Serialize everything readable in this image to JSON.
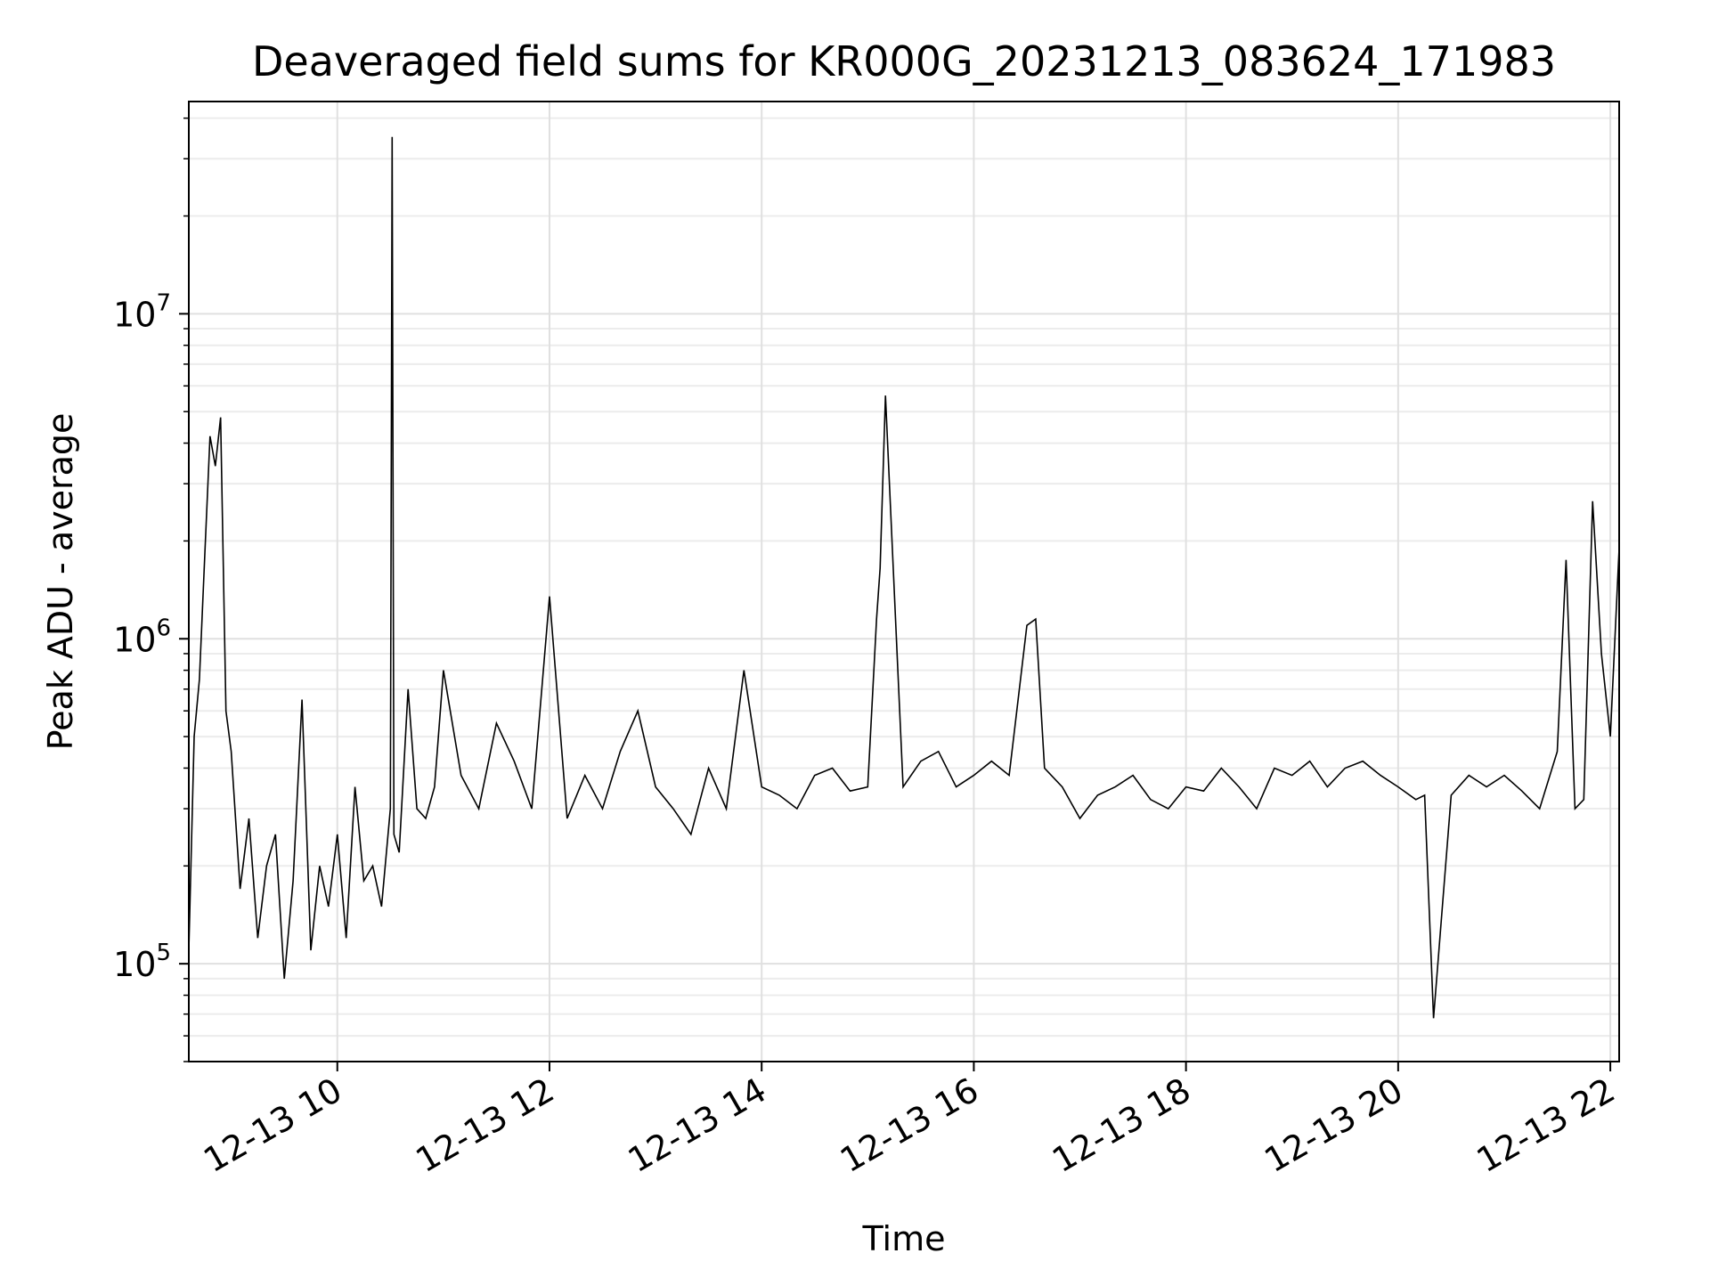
{
  "chart_data": {
    "type": "line",
    "title": "Deaveraged field sums for KR000G_20231213_083624_171983",
    "xlabel": "Time",
    "ylabel": "Peak ADU - average",
    "y_scale": "log",
    "grid": "major and minor",
    "x_range": [
      "2023-12-13 08:36",
      "2023-12-13 22:05"
    ],
    "ylim": [
      50000,
      45000000
    ],
    "x_ticks": [
      {
        "t": "2023-12-13 10:00",
        "label": "12-13 10"
      },
      {
        "t": "2023-12-13 12:00",
        "label": "12-13 12"
      },
      {
        "t": "2023-12-13 14:00",
        "label": "12-13 14"
      },
      {
        "t": "2023-12-13 16:00",
        "label": "12-13 16"
      },
      {
        "t": "2023-12-13 18:00",
        "label": "12-13 18"
      },
      {
        "t": "2023-12-13 20:00",
        "label": "12-13 20"
      },
      {
        "t": "2023-12-13 22:00",
        "label": "12-13 22"
      }
    ],
    "y_ticks": [
      {
        "value": 100000,
        "base": "10",
        "exp": "5"
      },
      {
        "value": 1000000,
        "base": "10",
        "exp": "6"
      },
      {
        "value": 10000000,
        "base": "10",
        "exp": "7"
      }
    ],
    "series": [
      {
        "color": "#000000",
        "x": [
          "2023-12-13 08:36",
          "2023-12-13 08:39",
          "2023-12-13 08:42",
          "2023-12-13 08:45",
          "2023-12-13 08:48",
          "2023-12-13 08:51",
          "2023-12-13 08:54",
          "2023-12-13 08:57",
          "2023-12-13 09:00",
          "2023-12-13 09:05",
          "2023-12-13 09:10",
          "2023-12-13 09:15",
          "2023-12-13 09:20",
          "2023-12-13 09:25",
          "2023-12-13 09:30",
          "2023-12-13 09:35",
          "2023-12-13 09:40",
          "2023-12-13 09:45",
          "2023-12-13 09:50",
          "2023-12-13 09:55",
          "2023-12-13 10:00",
          "2023-12-13 10:05",
          "2023-12-13 10:10",
          "2023-12-13 10:15",
          "2023-12-13 10:20",
          "2023-12-13 10:25",
          "2023-12-13 10:30",
          "2023-12-13 10:31",
          "2023-12-13 10:32",
          "2023-12-13 10:35",
          "2023-12-13 10:40",
          "2023-12-13 10:45",
          "2023-12-13 10:50",
          "2023-12-13 10:55",
          "2023-12-13 11:00",
          "2023-12-13 11:10",
          "2023-12-13 11:20",
          "2023-12-13 11:30",
          "2023-12-13 11:40",
          "2023-12-13 11:50",
          "2023-12-13 12:00",
          "2023-12-13 12:10",
          "2023-12-13 12:20",
          "2023-12-13 12:30",
          "2023-12-13 12:40",
          "2023-12-13 12:50",
          "2023-12-13 13:00",
          "2023-12-13 13:10",
          "2023-12-13 13:20",
          "2023-12-13 13:30",
          "2023-12-13 13:40",
          "2023-12-13 13:50",
          "2023-12-13 14:00",
          "2023-12-13 14:10",
          "2023-12-13 14:20",
          "2023-12-13 14:30",
          "2023-12-13 14:40",
          "2023-12-13 14:50",
          "2023-12-13 15:00",
          "2023-12-13 15:05",
          "2023-12-13 15:07",
          "2023-12-13 15:10",
          "2023-12-13 15:20",
          "2023-12-13 15:30",
          "2023-12-13 15:40",
          "2023-12-13 15:50",
          "2023-12-13 16:00",
          "2023-12-13 16:10",
          "2023-12-13 16:20",
          "2023-12-13 16:30",
          "2023-12-13 16:35",
          "2023-12-13 16:40",
          "2023-12-13 16:50",
          "2023-12-13 17:00",
          "2023-12-13 17:10",
          "2023-12-13 17:20",
          "2023-12-13 17:30",
          "2023-12-13 17:40",
          "2023-12-13 17:50",
          "2023-12-13 18:00",
          "2023-12-13 18:10",
          "2023-12-13 18:20",
          "2023-12-13 18:30",
          "2023-12-13 18:40",
          "2023-12-13 18:50",
          "2023-12-13 19:00",
          "2023-12-13 19:10",
          "2023-12-13 19:20",
          "2023-12-13 19:30",
          "2023-12-13 19:40",
          "2023-12-13 19:50",
          "2023-12-13 20:00",
          "2023-12-13 20:10",
          "2023-12-13 20:15",
          "2023-12-13 20:20",
          "2023-12-13 20:30",
          "2023-12-13 20:40",
          "2023-12-13 20:50",
          "2023-12-13 21:00",
          "2023-12-13 21:10",
          "2023-12-13 21:20",
          "2023-12-13 21:30",
          "2023-12-13 21:35",
          "2023-12-13 21:40",
          "2023-12-13 21:45",
          "2023-12-13 21:50",
          "2023-12-13 21:55",
          "2023-12-13 22:00",
          "2023-12-13 22:05"
        ],
        "y": [
          110000,
          500000,
          750000,
          1800000,
          4200000,
          3400000,
          4800000,
          600000,
          450000,
          170000,
          280000,
          120000,
          200000,
          250000,
          90000,
          180000,
          650000,
          110000,
          200000,
          150000,
          250000,
          120000,
          350000,
          180000,
          200000,
          150000,
          300000,
          35000000,
          250000,
          220000,
          700000,
          300000,
          280000,
          350000,
          800000,
          380000,
          300000,
          550000,
          420000,
          300000,
          1350000,
          280000,
          380000,
          300000,
          450000,
          600000,
          350000,
          300000,
          250000,
          400000,
          300000,
          800000,
          350000,
          330000,
          300000,
          380000,
          400000,
          340000,
          350000,
          1150000,
          1650000,
          5600000,
          350000,
          420000,
          450000,
          350000,
          380000,
          420000,
          380000,
          1100000,
          1150000,
          400000,
          350000,
          280000,
          330000,
          350000,
          380000,
          320000,
          300000,
          350000,
          340000,
          400000,
          350000,
          300000,
          400000,
          380000,
          420000,
          350000,
          400000,
          420000,
          380000,
          350000,
          320000,
          330000,
          68000,
          330000,
          380000,
          350000,
          380000,
          340000,
          300000,
          450000,
          1750000,
          300000,
          320000,
          2650000,
          900000,
          500000,
          1900000
        ]
      }
    ]
  }
}
